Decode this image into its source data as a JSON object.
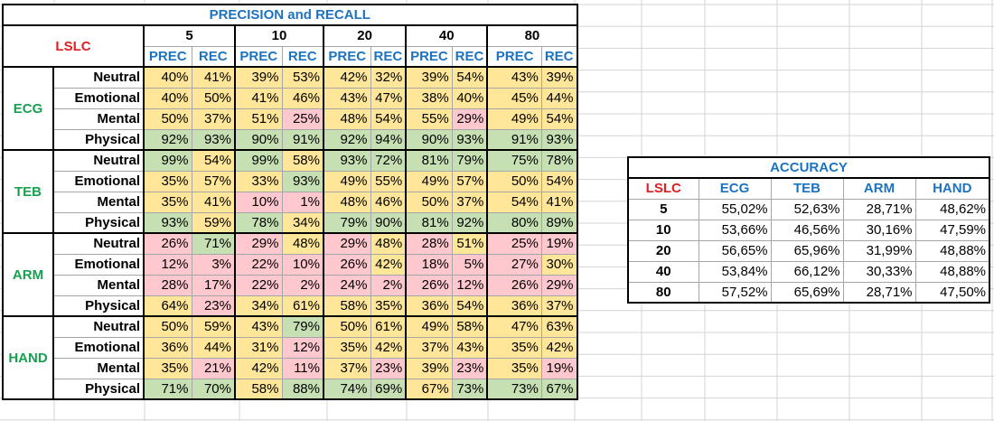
{
  "precision_recall": {
    "title": "PRECISION and RECALL",
    "corner_label": "LSLC",
    "k_values": [
      "5",
      "10",
      "20",
      "40",
      "80"
    ],
    "sub_headers": [
      "PREC",
      "REC"
    ],
    "groups": [
      {
        "name": "ECG",
        "rows": [
          {
            "label": "Neutral",
            "values": [
              "40%",
              "41%",
              "39%",
              "53%",
              "42%",
              "32%",
              "39%",
              "54%",
              "43%",
              "39%"
            ],
            "colors": [
              "y",
              "y",
              "y",
              "y",
              "y",
              "y",
              "y",
              "y",
              "y",
              "y"
            ]
          },
          {
            "label": "Emotional",
            "values": [
              "40%",
              "50%",
              "41%",
              "46%",
              "43%",
              "47%",
              "38%",
              "40%",
              "45%",
              "44%"
            ],
            "colors": [
              "y",
              "y",
              "y",
              "y",
              "y",
              "y",
              "y",
              "y",
              "y",
              "y"
            ]
          },
          {
            "label": "Mental",
            "values": [
              "50%",
              "37%",
              "51%",
              "25%",
              "48%",
              "54%",
              "55%",
              "29%",
              "49%",
              "54%"
            ],
            "colors": [
              "y",
              "y",
              "y",
              "p",
              "y",
              "y",
              "y",
              "p",
              "y",
              "y"
            ]
          },
          {
            "label": "Physical",
            "values": [
              "92%",
              "93%",
              "90%",
              "91%",
              "92%",
              "94%",
              "90%",
              "93%",
              "91%",
              "93%"
            ],
            "colors": [
              "g",
              "g",
              "g",
              "g",
              "g",
              "g",
              "g",
              "g",
              "g",
              "g"
            ]
          }
        ]
      },
      {
        "name": "TEB",
        "rows": [
          {
            "label": "Neutral",
            "values": [
              "99%",
              "54%",
              "99%",
              "58%",
              "93%",
              "72%",
              "81%",
              "79%",
              "75%",
              "78%"
            ],
            "colors": [
              "g",
              "y",
              "g",
              "y",
              "g",
              "g",
              "g",
              "g",
              "g",
              "g"
            ]
          },
          {
            "label": "Emotional",
            "values": [
              "35%",
              "57%",
              "33%",
              "93%",
              "49%",
              "55%",
              "49%",
              "57%",
              "50%",
              "54%"
            ],
            "colors": [
              "y",
              "y",
              "y",
              "g",
              "y",
              "y",
              "y",
              "y",
              "y",
              "y"
            ]
          },
          {
            "label": "Mental",
            "values": [
              "35%",
              "41%",
              "10%",
              "1%",
              "48%",
              "46%",
              "50%",
              "37%",
              "54%",
              "41%"
            ],
            "colors": [
              "y",
              "y",
              "p",
              "p",
              "y",
              "y",
              "y",
              "y",
              "y",
              "y"
            ]
          },
          {
            "label": "Physical",
            "values": [
              "93%",
              "59%",
              "78%",
              "34%",
              "79%",
              "90%",
              "81%",
              "92%",
              "80%",
              "89%"
            ],
            "colors": [
              "g",
              "y",
              "g",
              "y",
              "g",
              "g",
              "g",
              "g",
              "g",
              "g"
            ]
          }
        ]
      },
      {
        "name": "ARM",
        "rows": [
          {
            "label": "Neutral",
            "values": [
              "26%",
              "71%",
              "29%",
              "48%",
              "29%",
              "48%",
              "28%",
              "51%",
              "25%",
              "19%"
            ],
            "colors": [
              "p",
              "g",
              "p",
              "y",
              "p",
              "y",
              "p",
              "y",
              "p",
              "p"
            ]
          },
          {
            "label": "Emotional",
            "values": [
              "12%",
              "3%",
              "22%",
              "10%",
              "26%",
              "42%",
              "18%",
              "5%",
              "27%",
              "30%"
            ],
            "colors": [
              "p",
              "p",
              "p",
              "p",
              "p",
              "y",
              "p",
              "p",
              "p",
              "y"
            ]
          },
          {
            "label": "Mental",
            "values": [
              "28%",
              "17%",
              "22%",
              "2%",
              "24%",
              "2%",
              "26%",
              "12%",
              "26%",
              "29%"
            ],
            "colors": [
              "p",
              "p",
              "p",
              "p",
              "p",
              "p",
              "p",
              "p",
              "p",
              "p"
            ]
          },
          {
            "label": "Physical",
            "values": [
              "64%",
              "23%",
              "34%",
              "61%",
              "58%",
              "35%",
              "36%",
              "54%",
              "36%",
              "37%"
            ],
            "colors": [
              "y",
              "p",
              "y",
              "y",
              "y",
              "y",
              "y",
              "y",
              "y",
              "y"
            ]
          }
        ]
      },
      {
        "name": "HAND",
        "rows": [
          {
            "label": "Neutral",
            "values": [
              "50%",
              "59%",
              "43%",
              "79%",
              "50%",
              "61%",
              "49%",
              "58%",
              "47%",
              "63%"
            ],
            "colors": [
              "y",
              "y",
              "y",
              "g",
              "y",
              "y",
              "y",
              "y",
              "y",
              "y"
            ]
          },
          {
            "label": "Emotional",
            "values": [
              "36%",
              "44%",
              "31%",
              "12%",
              "35%",
              "42%",
              "37%",
              "43%",
              "35%",
              "42%"
            ],
            "colors": [
              "y",
              "y",
              "y",
              "p",
              "y",
              "y",
              "y",
              "y",
              "y",
              "y"
            ]
          },
          {
            "label": "Mental",
            "values": [
              "35%",
              "21%",
              "42%",
              "11%",
              "37%",
              "23%",
              "39%",
              "23%",
              "35%",
              "19%"
            ],
            "colors": [
              "y",
              "p",
              "y",
              "p",
              "y",
              "p",
              "y",
              "p",
              "y",
              "p"
            ]
          },
          {
            "label": "Physical",
            "values": [
              "71%",
              "70%",
              "58%",
              "88%",
              "74%",
              "69%",
              "67%",
              "73%",
              "73%",
              "67%"
            ],
            "colors": [
              "g",
              "g",
              "y",
              "g",
              "g",
              "g",
              "y",
              "g",
              "g",
              "g"
            ]
          }
        ]
      }
    ]
  },
  "accuracy": {
    "title": "ACCURACY",
    "corner_label": "LSLC",
    "columns": [
      "ECG",
      "TEB",
      "ARM",
      "HAND"
    ],
    "rows": [
      {
        "k": "5",
        "values": [
          "55,02%",
          "52,63%",
          "28,71%",
          "48,62%"
        ]
      },
      {
        "k": "10",
        "values": [
          "53,66%",
          "46,56%",
          "30,16%",
          "47,59%"
        ]
      },
      {
        "k": "20",
        "values": [
          "56,65%",
          "65,96%",
          "31,99%",
          "48,88%"
        ]
      },
      {
        "k": "40",
        "values": [
          "53,84%",
          "66,12%",
          "30,33%",
          "48,88%"
        ]
      },
      {
        "k": "80",
        "values": [
          "57,52%",
          "65,69%",
          "28,71%",
          "47,50%"
        ]
      }
    ]
  },
  "colors": {
    "yellow": "#ffe699",
    "green": "#c6e0b4",
    "pink": "#ffc7ce",
    "header_blue": "#1e73be",
    "label_red": "#e02020",
    "label_green": "#18a050"
  }
}
